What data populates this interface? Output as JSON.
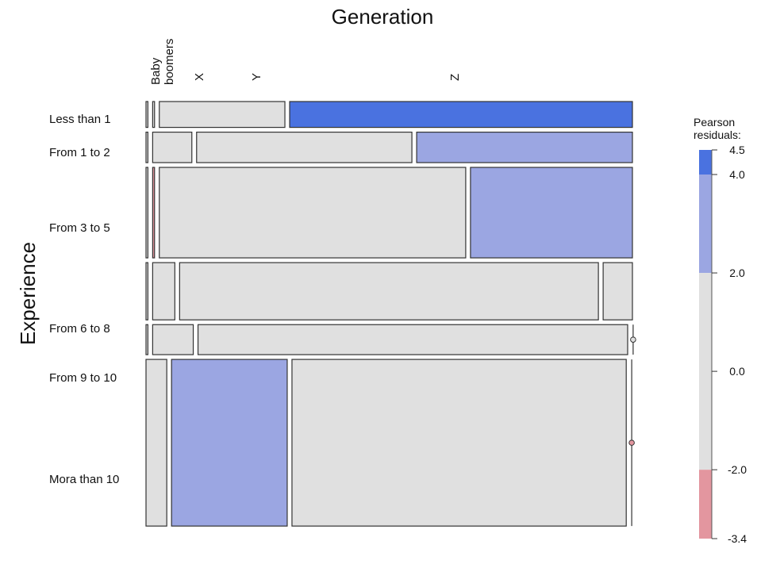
{
  "chart_data": {
    "type": "mosaic",
    "title": "Generation",
    "ylabel": "Experience",
    "columns": [
      "Baby boomers",
      "X",
      "Y",
      "Z"
    ],
    "rows": [
      "Less than 1",
      "From 1 to 2",
      "From 3 to 5",
      "From 6 to 8",
      "From 9 to 10",
      "Mora than 10"
    ],
    "row_proportions": [
      0.056,
      0.066,
      0.196,
      0.124,
      0.065,
      0.361
    ],
    "cells": [
      [
        0.004,
        0.004,
        0.266,
        0.726
      ],
      [
        0.004,
        0.083,
        0.456,
        0.457
      ],
      [
        0.004,
        0.004,
        0.649,
        0.343
      ],
      [
        0.004,
        0.047,
        0.887,
        0.062
      ],
      [
        0.004,
        0.086,
        0.91,
        0.003
      ],
      [
        0.044,
        0.245,
        0.708,
        0.003
      ]
    ],
    "residuals": [
      [
        0.0,
        0.0,
        0.5,
        4.3
      ],
      [
        0.0,
        0.0,
        0.8,
        2.5
      ],
      [
        0.0,
        -2.3,
        0.5,
        3.0
      ],
      [
        0.0,
        0.0,
        0.9,
        -0.5
      ],
      [
        0.0,
        0.0,
        0.5,
        0.0
      ],
      [
        0.5,
        2.6,
        0.0,
        -2.5
      ]
    ],
    "legend": {
      "title": "Pearson residuals:",
      "ticks": [
        "4.5",
        "4.0",
        "2.0",
        "0.0",
        "-2.0",
        "-3.4"
      ],
      "min": -3.4,
      "max": 4.5,
      "bands": [
        {
          "from": 4.0,
          "to": 4.5,
          "color": "#4a72e0"
        },
        {
          "from": 2.0,
          "to": 4.0,
          "color": "#9ba6e2"
        },
        {
          "from": -2.0,
          "to": 2.0,
          "color": "#e0e0e0"
        },
        {
          "from": -3.4,
          "to": -2.0,
          "color": "#e3969f"
        }
      ]
    }
  }
}
